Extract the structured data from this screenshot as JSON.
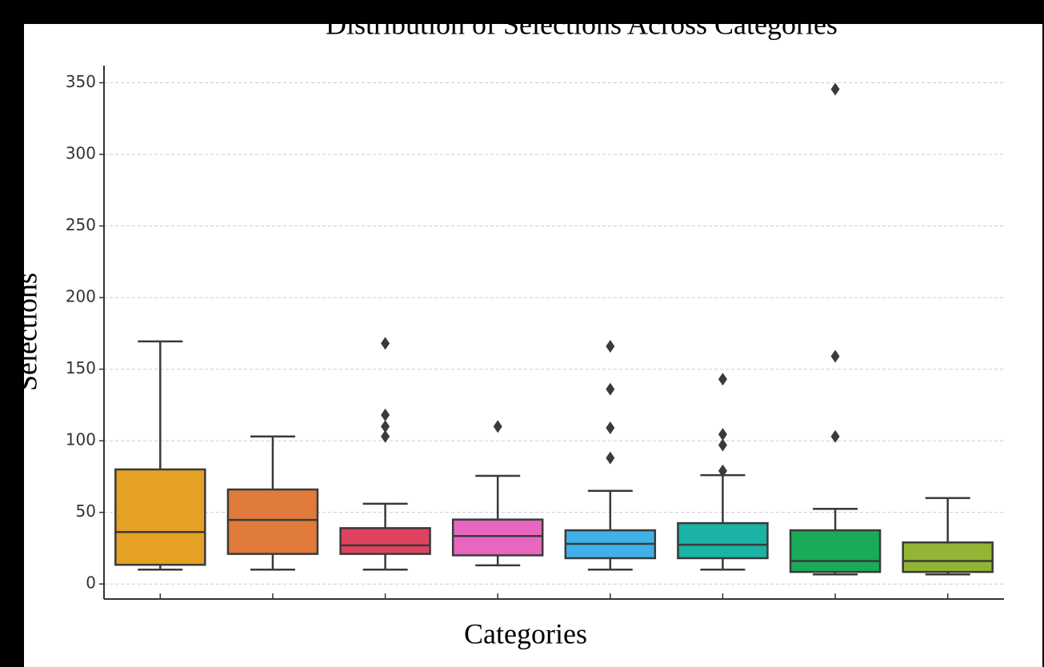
{
  "chart_data": {
    "type": "box",
    "title": "Distribution of Selections Across Categories",
    "x_label": "Categories",
    "y_label": "Selections",
    "categories": [
      null,
      null,
      null,
      null,
      null,
      null,
      null,
      null
    ],
    "boxes": [
      {
        "whislo": 10,
        "q1": 13.4,
        "med": 36.3,
        "q3": 80,
        "whishi": 169.4,
        "fliers": [],
        "color": "#e5a124"
      },
      {
        "whislo": 10,
        "q1": 21,
        "med": 44.7,
        "q3": 66,
        "whishi": 103,
        "fliers": [],
        "color": "#e07a3a"
      },
      {
        "whislo": 10,
        "q1": 21,
        "med": 27,
        "q3": 39,
        "whishi": 56,
        "fliers": [
          168,
          118,
          110,
          103
        ],
        "color": "#e0435f"
      },
      {
        "whislo": 13,
        "q1": 20,
        "med": 33.5,
        "q3": 45,
        "whishi": 75.5,
        "fliers": [
          110
        ],
        "color": "#e766c0"
      },
      {
        "whislo": 10,
        "q1": 18,
        "med": 28,
        "q3": 37.5,
        "whishi": 65,
        "fliers": [
          166,
          136,
          109,
          88
        ],
        "color": "#3fb0e8"
      },
      {
        "whislo": 10,
        "q1": 18,
        "med": 27.4,
        "q3": 42.5,
        "whishi": 76,
        "fliers": [
          143,
          104.5,
          97,
          79
        ],
        "color": "#1ab3a5"
      },
      {
        "whislo": 6.7,
        "q1": 8.4,
        "med": 16,
        "q3": 37.5,
        "whishi": 52.5,
        "fliers": [
          345.5,
          159,
          103
        ],
        "color": "#1aab59"
      },
      {
        "whislo": 6.7,
        "q1": 8.4,
        "med": 16,
        "q3": 29,
        "whishi": 60,
        "fliers": [],
        "color": "#93b535"
      }
    ],
    "ylim": [
      -10.5,
      362
    ],
    "yticks": [
      0,
      50,
      100,
      150,
      200,
      250,
      300,
      350
    ],
    "grid": true
  }
}
